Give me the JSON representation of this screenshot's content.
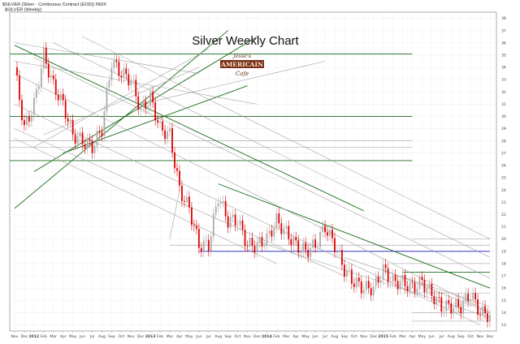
{
  "header": {
    "symbol_line": "$SILVER (Silver - Continuous Contract (EOD)) INDX",
    "legend_line": "$SILVER (Weekly)"
  },
  "logo": {
    "line1": "Jesse's",
    "line2": "AMERICAIN",
    "line3": "Cafe"
  },
  "chart_data": {
    "type": "candlestick",
    "title": "Silver Weekly Chart",
    "xlabel": "",
    "ylabel": "",
    "ylim": [
      12.5,
      38.5
    ],
    "y_ticks": [
      13,
      14,
      15,
      16,
      17,
      18,
      19,
      20,
      21,
      22,
      23,
      24,
      25,
      26,
      27,
      28,
      29,
      30,
      31,
      32,
      33,
      34,
      35,
      36,
      37,
      38
    ],
    "y_axis_position": "right",
    "x_tick_labels": [
      "Nov",
      "Dec",
      "2012",
      "Feb",
      "Mar",
      "Apr",
      "May",
      "Jun",
      "Jul",
      "Aug",
      "Sep",
      "Oct",
      "Nov",
      "Dec",
      "2013",
      "Feb",
      "Mar",
      "Apr",
      "May",
      "Jun",
      "Jul",
      "Aug",
      "Sep",
      "Oct",
      "Nov",
      "Dec",
      "2014",
      "Feb",
      "Mar",
      "Apr",
      "May",
      "Jun",
      "Jul",
      "Aug",
      "Sep",
      "Oct",
      "Nov",
      "Dec",
      "2015",
      "Feb",
      "Mar",
      "Apr",
      "May",
      "Jun",
      "Jul",
      "Aug",
      "Sep",
      "Oct",
      "Nov",
      "Dec"
    ],
    "x_range": [
      "Nov 2011",
      "Dec 2015"
    ],
    "grid": true,
    "colors": {
      "down": "#dd0000",
      "up": "#aaaaaa",
      "trend_dark": "#1a6b1a",
      "trend_light": "#9a9a9a",
      "support": "#3333cc"
    },
    "close_path": [
      [
        "Nov 2011",
        34.0
      ],
      [
        "Dec 2011",
        29.0
      ],
      [
        "Jan 2012",
        31.0
      ],
      [
        "Feb 2012",
        35.0
      ],
      [
        "Mar 2012",
        32.5
      ],
      [
        "Apr 2012",
        31.0
      ],
      [
        "May 2012",
        28.5
      ],
      [
        "Jun 2012",
        28.0
      ],
      [
        "Jul 2012",
        27.5
      ],
      [
        "Aug 2012",
        29.0
      ],
      [
        "Sep 2012",
        34.5
      ],
      [
        "Oct 2012",
        33.5
      ],
      [
        "Nov 2012",
        33.0
      ],
      [
        "Dec 2012",
        30.5
      ],
      [
        "Jan 2013",
        31.5
      ],
      [
        "Feb 2013",
        29.0
      ],
      [
        "Mar 2013",
        28.5
      ],
      [
        "Apr 2013",
        24.0
      ],
      [
        "May 2013",
        22.5
      ],
      [
        "Jun 2013",
        19.5
      ],
      [
        "Jul 2013",
        19.5
      ],
      [
        "Aug 2013",
        23.5
      ],
      [
        "Sep 2013",
        21.5
      ],
      [
        "Oct 2013",
        21.5
      ],
      [
        "Nov 2013",
        19.5
      ],
      [
        "Dec 2013",
        19.5
      ],
      [
        "Jan 2014",
        20.0
      ],
      [
        "Feb 2014",
        21.5
      ],
      [
        "Mar 2014",
        20.5
      ],
      [
        "Apr 2014",
        19.5
      ],
      [
        "May 2014",
        19.0
      ],
      [
        "Jun 2014",
        19.5
      ],
      [
        "Jul 2014",
        21.0
      ],
      [
        "Aug 2014",
        19.5
      ],
      [
        "Sep 2014",
        17.5
      ],
      [
        "Oct 2014",
        16.5
      ],
      [
        "Nov 2014",
        16.0
      ],
      [
        "Dec 2014",
        16.0
      ],
      [
        "Jan 2015",
        17.5
      ],
      [
        "Feb 2015",
        16.5
      ],
      [
        "Mar 2015",
        16.5
      ],
      [
        "Apr 2015",
        16.0
      ],
      [
        "May 2015",
        16.5
      ],
      [
        "Jun 2015",
        15.5
      ],
      [
        "Jul 2015",
        14.5
      ],
      [
        "Aug 2015",
        14.5
      ],
      [
        "Sep 2015",
        14.5
      ],
      [
        "Oct 2015",
        15.5
      ],
      [
        "Nov 2015",
        14.0
      ],
      [
        "Dec 2015",
        13.8
      ]
    ],
    "horizontal_lines": [
      {
        "y": 26.4,
        "style": "dark",
        "to": "Apr 2015"
      },
      {
        "y": 30.0,
        "style": "dark",
        "to": "Apr 2015"
      },
      {
        "y": 35.1,
        "style": "dark",
        "to": "Apr 2015"
      },
      {
        "y": 27.5,
        "style": "light",
        "to": "Apr 2015"
      },
      {
        "y": 28.0,
        "style": "light",
        "to": "Apr 2015"
      },
      {
        "y": 19.0,
        "style": "support",
        "from": "Jun 2013",
        "to": "Dec 2015"
      },
      {
        "y": 19.5,
        "style": "light",
        "from": "Mar 2013",
        "to": "Dec 2015"
      },
      {
        "y": 20.0,
        "style": "light",
        "from": "Apr 2015",
        "to": "Dec 2015"
      },
      {
        "y": 17.3,
        "style": "dark",
        "from": "Mar 2015",
        "to": "Dec 2015"
      },
      {
        "y": 18.0,
        "style": "light",
        "from": "Feb 2015",
        "to": "Dec 2015"
      },
      {
        "y": 15.6,
        "style": "light",
        "from": "Mar 2015",
        "to": "Dec 2015"
      },
      {
        "y": 14.0,
        "style": "light",
        "from": "Apr 2015",
        "to": "Dec 2015"
      },
      {
        "y": 13.3,
        "style": "light",
        "from": "Apr 2015",
        "to": "Dec 2015"
      }
    ],
    "trend_lines": [
      {
        "from": [
          "Nov 2011",
          22.5
        ],
        "to": [
          "Sep 2013",
          37.0
        ],
        "style": "dark"
      },
      {
        "from": [
          "Jan 2012",
          25.5
        ],
        "to": [
          "Dec 2013",
          36.5
        ],
        "style": "dark"
      },
      {
        "from": [
          "Apr 2012",
          27.0
        ],
        "to": [
          "Nov 2013",
          32.5
        ],
        "style": "dark"
      },
      {
        "from": [
          "Nov 2011",
          35.8
        ],
        "to": [
          "Nov 2014",
          22.3
        ],
        "style": "dark"
      },
      {
        "from": [
          "Aug 2013",
          24.5
        ],
        "to": [
          "Dec 2015",
          16.0
        ],
        "style": "dark"
      },
      {
        "from": [
          "Nov 2011",
          33.5
        ],
        "to": [
          "Dec 2015",
          14.0
        ],
        "style": "light"
      },
      {
        "from": [
          "Jan 2012",
          34.8
        ],
        "to": [
          "Dec 2015",
          16.8
        ],
        "style": "light"
      },
      {
        "from": [
          "Mar 2012",
          36.0
        ],
        "to": [
          "Dec 2015",
          18.5
        ],
        "style": "light"
      },
      {
        "from": [
          "Jun 2012",
          36.5
        ],
        "to": [
          "Dec 2015",
          20.0
        ],
        "style": "light"
      },
      {
        "from": [
          "Nov 2011",
          31.0
        ],
        "to": [
          "Nov 2015",
          13.0
        ],
        "style": "light"
      },
      {
        "from": [
          "Nov 2011",
          29.0
        ],
        "to": [
          "Sep 2014",
          17.0
        ],
        "style": "light"
      },
      {
        "from": [
          "Nov 2011",
          28.2
        ],
        "to": [
          "Feb 2014",
          18.0
        ],
        "style": "light"
      },
      {
        "from": [
          "Nov 2011",
          36.0
        ],
        "to": [
          "Jun 2013",
          33.5
        ],
        "style": "light"
      },
      {
        "from": [
          "Nov 2011",
          34.5
        ],
        "to": [
          "Dec 2013",
          31.0
        ],
        "style": "light"
      },
      {
        "from": [
          "Jan 2012",
          27.5
        ],
        "to": [
          "Jul 2013",
          35.5
        ],
        "style": "light"
      },
      {
        "from": [
          "Feb 2012",
          28.5
        ],
        "to": [
          "Jun 2013",
          34.0
        ],
        "style": "light"
      },
      {
        "from": [
          "Dec 2012",
          31.0
        ],
        "to": [
          "Jul 2014",
          34.5
        ],
        "style": "light"
      },
      {
        "from": [
          "Mar 2013",
          20.0
        ],
        "to": [
          "Apr 2013",
          24.0
        ],
        "style": "light"
      },
      {
        "from": [
          "Dec 2013",
          19.8
        ],
        "to": [
          "Dec 2015",
          13.6
        ],
        "style": "light"
      },
      {
        "from": [
          "Jan 2015",
          17.5
        ],
        "to": [
          "Dec 2015",
          14.0
        ],
        "style": "light"
      },
      {
        "from": [
          "Sep 2014",
          18.5
        ],
        "to": [
          "Dec 2015",
          14.5
        ],
        "style": "light"
      }
    ]
  }
}
